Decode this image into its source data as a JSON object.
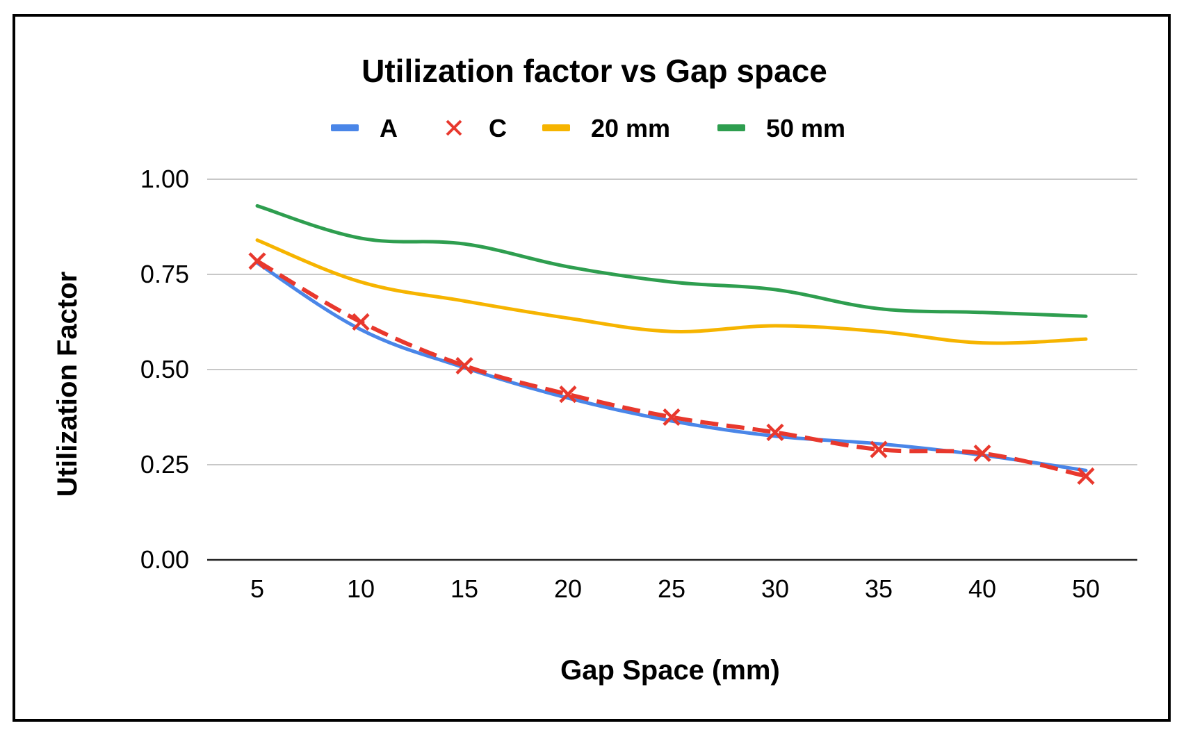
{
  "chart_data": {
    "type": "line",
    "title": "Utilization factor vs Gap space",
    "xlabel": "Gap Space (mm)",
    "ylabel": "Utilization Factor",
    "categories": [
      "5",
      "10",
      "15",
      "20",
      "25",
      "30",
      "35",
      "40",
      "50"
    ],
    "yticks": [
      "0.00",
      "0.25",
      "0.50",
      "0.75",
      "1.00"
    ],
    "ylim": [
      0,
      1
    ],
    "grid": true,
    "legend_position": "top",
    "series": [
      {
        "name": "A",
        "color": "#4a86e8",
        "style": "solid",
        "marker": "none",
        "values": [
          0.78,
          0.605,
          0.505,
          0.425,
          0.365,
          0.325,
          0.305,
          0.275,
          0.235
        ]
      },
      {
        "name": "C",
        "color": "#e8382d",
        "style": "dashed",
        "marker": "x",
        "values": [
          0.785,
          0.625,
          0.51,
          0.435,
          0.375,
          0.335,
          0.29,
          0.28,
          0.22
        ]
      },
      {
        "name": "20 mm",
        "color": "#f6b400",
        "style": "solid",
        "marker": "none",
        "values": [
          0.84,
          0.73,
          0.68,
          0.635,
          0.6,
          0.615,
          0.6,
          0.57,
          0.58
        ]
      },
      {
        "name": "50 mm",
        "color": "#2e9e4f",
        "style": "solid",
        "marker": "none",
        "values": [
          0.93,
          0.845,
          0.83,
          0.77,
          0.73,
          0.71,
          0.66,
          0.65,
          0.64
        ]
      }
    ]
  }
}
